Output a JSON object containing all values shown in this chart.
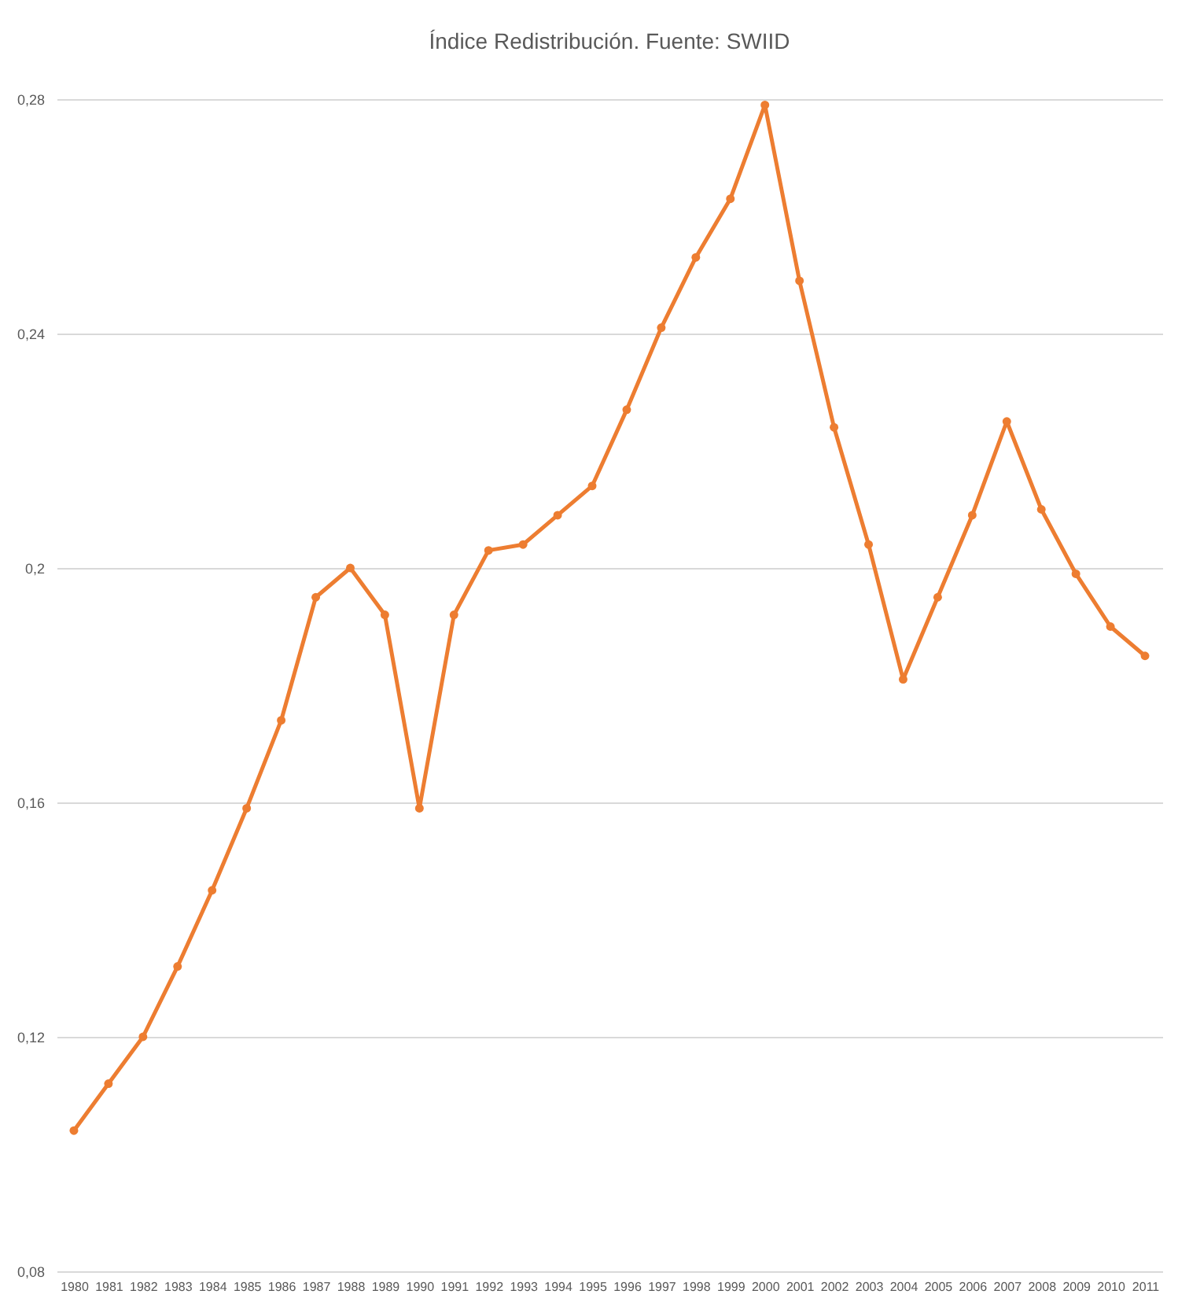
{
  "chart_data": {
    "type": "line",
    "title": "Índice Redistribución. Fuente: SWIID",
    "categories": [
      "1980",
      "1981",
      "1982",
      "1983",
      "1984",
      "1985",
      "1986",
      "1987",
      "1988",
      "1989",
      "1990",
      "1991",
      "1992",
      "1993",
      "1994",
      "1995",
      "1996",
      "1997",
      "1998",
      "1999",
      "2000",
      "2001",
      "2002",
      "2003",
      "2004",
      "2005",
      "2006",
      "2007",
      "2008",
      "2009",
      "2010",
      "2011"
    ],
    "series": [
      {
        "color": "#ed7d31",
        "values": [
          0.104,
          0.112,
          0.12,
          0.132,
          0.145,
          0.159,
          0.174,
          0.195,
          0.2,
          0.192,
          0.159,
          0.192,
          0.203,
          0.204,
          0.209,
          0.214,
          0.227,
          0.241,
          0.253,
          0.263,
          0.279,
          0.249,
          0.224,
          0.204,
          0.181,
          0.195,
          0.209,
          0.225,
          0.21,
          0.199,
          0.19,
          0.185
        ]
      }
    ],
    "ylim": [
      0.08,
      0.28
    ],
    "yticks": [
      {
        "value": 0.08,
        "label": "0,08"
      },
      {
        "value": 0.12,
        "label": "0,12"
      },
      {
        "value": 0.16,
        "label": "0,16"
      },
      {
        "value": 0.2,
        "label": "0,2"
      },
      {
        "value": 0.24,
        "label": "0,24"
      },
      {
        "value": 0.28,
        "label": "0,28"
      }
    ],
    "grid": "y",
    "marker": "circle",
    "line_style": "solid",
    "legend": false
  }
}
